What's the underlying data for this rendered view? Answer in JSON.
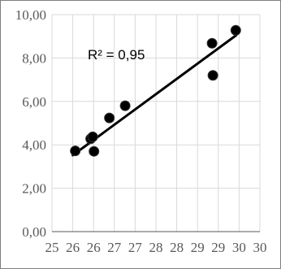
{
  "chart_data": {
    "type": "scatter",
    "title": "",
    "xlabel": "",
    "ylabel": "",
    "x_ticks": [
      "25",
      "26",
      "26",
      "27",
      "27",
      "28",
      "28",
      "29",
      "29",
      "30",
      "30"
    ],
    "y_ticks": [
      "0,00",
      "2,00",
      "4,00",
      "6,00",
      "8,00",
      "10,00"
    ],
    "xlim": [
      25,
      30
    ],
    "ylim": [
      0,
      10
    ],
    "grid": true,
    "legend": "none",
    "series": [
      {
        "points": [
          {
            "x": 25.56,
            "y": 3.72
          },
          {
            "x": 25.93,
            "y": 4.28
          },
          {
            "x": 25.98,
            "y": 4.37
          },
          {
            "x": 26.01,
            "y": 3.7
          },
          {
            "x": 26.38,
            "y": 5.24
          },
          {
            "x": 26.76,
            "y": 5.8
          },
          {
            "x": 28.85,
            "y": 8.68
          },
          {
            "x": 28.87,
            "y": 7.2
          },
          {
            "x": 29.42,
            "y": 9.28
          }
        ]
      }
    ],
    "trendline": {
      "x": [
        25.5,
        29.43
      ],
      "y": [
        3.52,
        9.05
      ]
    },
    "annotation": "R² = 0,95",
    "colors": {
      "marker": "#000000",
      "trendline": "#000000",
      "grid": "#d9d9d9",
      "axis": "#595959",
      "frame": "#7f7f7f"
    }
  }
}
